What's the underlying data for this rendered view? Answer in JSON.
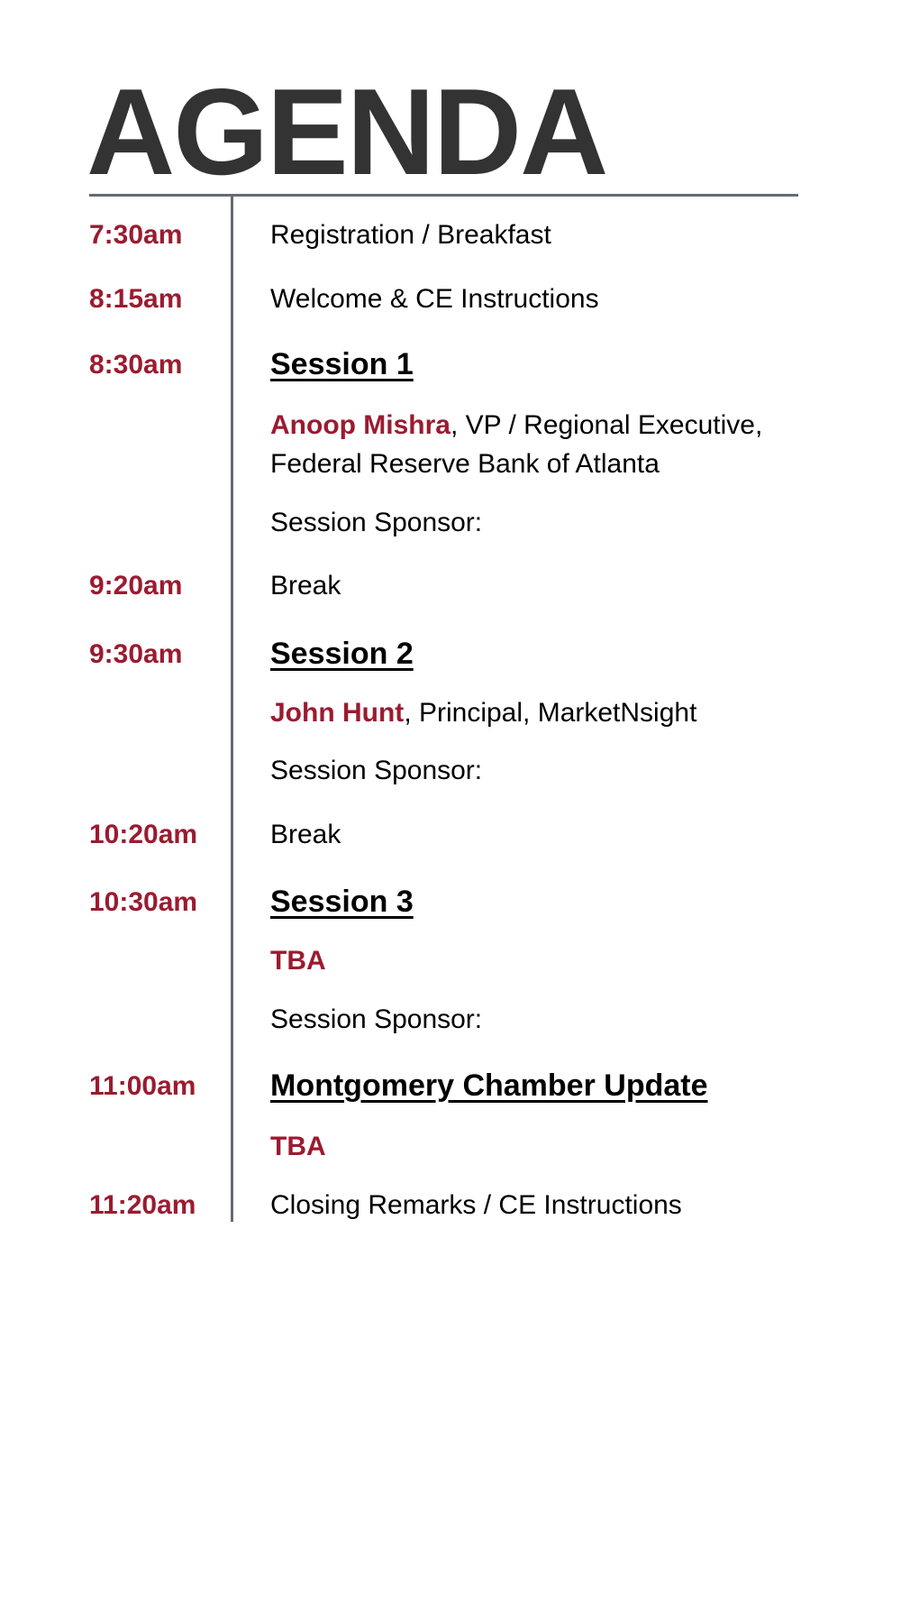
{
  "header": {
    "title": "AGENDA"
  },
  "items": [
    {
      "time": "7:30am",
      "text": "Registration / Breakfast"
    },
    {
      "time": "8:15am",
      "text": "Welcome & CE Instructions"
    },
    {
      "time": "8:30am",
      "heading": "Session 1"
    },
    {
      "speaker": "Anoop Mishra",
      "affiliation": ", VP / Regional Executive, Federal Reserve Bank of Atlanta"
    },
    {
      "text": "Session Sponsor:"
    },
    {
      "time": "9:20am",
      "text": "Break"
    },
    {
      "time": "9:30am",
      "heading": "Session 2"
    },
    {
      "speaker": "John Hunt",
      "affiliation": ", Principal, MarketNsight"
    },
    {
      "text": "Session Sponsor:"
    },
    {
      "time": "10:20am",
      "text": "Break"
    },
    {
      "time": "10:30am",
      "heading": "Session 3"
    },
    {
      "speaker": "TBA"
    },
    {
      "text": "Session Sponsor:"
    },
    {
      "time": "11:00am",
      "heading": "Montgomery Chamber Update"
    },
    {
      "speaker": "TBA"
    },
    {
      "time": "11:20am",
      "text": "Closing Remarks / CE Instructions"
    }
  ]
}
